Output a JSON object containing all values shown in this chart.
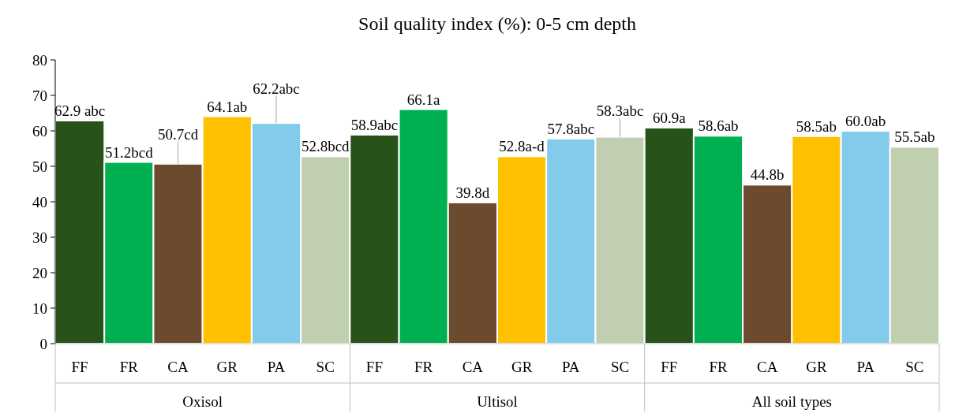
{
  "chart_data": {
    "type": "bar",
    "title": "Soil quality index (%): 0-5 cm depth",
    "categories": [
      "FF",
      "FR",
      "CA",
      "GR",
      "PA",
      "SC",
      "FF",
      "FR",
      "CA",
      "GR",
      "PA",
      "SC",
      "FF",
      "FR",
      "CA",
      "GR",
      "PA",
      "SC"
    ],
    "values": [
      62.9,
      51.2,
      50.7,
      64.1,
      62.2,
      52.8,
      58.9,
      66.1,
      39.8,
      52.8,
      57.8,
      58.3,
      60.9,
      58.6,
      44.8,
      58.5,
      60.0,
      55.5
    ],
    "colors": [
      "#275219",
      "#00b050",
      "#6b4a2e",
      "#ffc000",
      "#83cbeb",
      "#c0cfb0",
      "#275219",
      "#00b050",
      "#6b4a2e",
      "#ffc000",
      "#83cbeb",
      "#c0cfb0",
      "#275219",
      "#00b050",
      "#6b4a2e",
      "#ffc000",
      "#83cbeb",
      "#c0cfb0"
    ],
    "value_labels": [
      "62.9 abc",
      "51.2bcd",
      "50.7cd",
      "64.1ab",
      "62.2abc",
      "52.8bcd",
      "58.9abc",
      "66.1a",
      "39.8d",
      "52.8a-d",
      "57.8abc",
      "58.3abc",
      "60.9a",
      "58.6ab",
      "44.8b",
      "58.5ab",
      "60.0ab",
      "55.5ab"
    ],
    "annotations": [
      "Oxisol",
      "Ultisol",
      "All soil types"
    ],
    "ylim": [
      0,
      80
    ],
    "yticks": [
      0,
      10,
      20,
      30,
      40,
      50,
      60,
      70,
      80
    ],
    "grid": false
  }
}
